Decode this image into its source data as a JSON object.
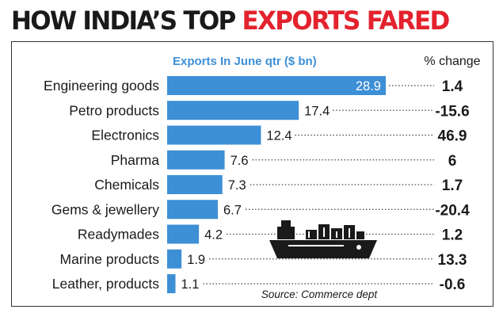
{
  "title": {
    "part1": "HOW INDIA’S TOP ",
    "part2": "EXPORTS FARED"
  },
  "colors": {
    "bar": "#3d8fd6",
    "title_accent": "#e3222d",
    "text": "#1a1a1a",
    "legend_label": "#3d8fd6"
  },
  "chart_data": {
    "type": "bar",
    "orientation": "horizontal",
    "series_label": "Exports In June qtr ($ bn)",
    "change_header": "% change",
    "categories": [
      "Engineering goods",
      "Petro products",
      "Electronics",
      "Pharma",
      "Chemicals",
      "Gems & jewellery",
      "Readymades",
      "Marine products",
      "Leather, products"
    ],
    "values": [
      28.9,
      17.4,
      12.4,
      7.6,
      7.3,
      6.7,
      4.2,
      1.9,
      1.1
    ],
    "value_labels": [
      "28.9",
      "17.4",
      "12.4",
      "7.6",
      "7.3",
      "6.7",
      "4.2",
      "1.9",
      "1.1"
    ],
    "pct_change": [
      "1.4",
      "-15.6",
      "46.9",
      "6",
      "1.7",
      "-20.4",
      "1.2",
      "13.3",
      "-0.6"
    ],
    "source": "Source: Commerce dept",
    "icon": "cargo-ship-icon"
  }
}
